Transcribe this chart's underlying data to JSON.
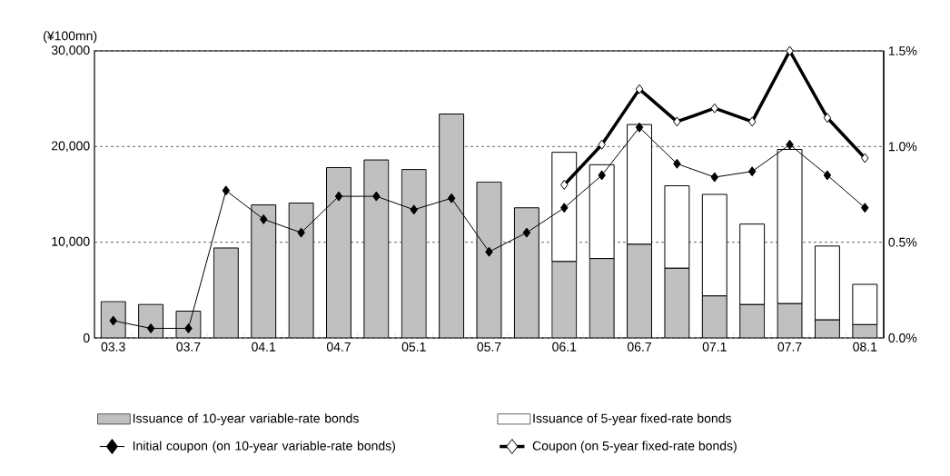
{
  "chart_data": {
    "type": "bar",
    "stacked": true,
    "ylabel": "(¥100mn)",
    "categories": [
      "03.3",
      null,
      "03.7",
      null,
      "04.1",
      null,
      "04.7",
      null,
      "05.1",
      null,
      "05.7",
      null,
      "06.1",
      null,
      "06.7",
      null,
      "07.1",
      null,
      "07.7",
      null,
      "08.1"
    ],
    "series": [
      {
        "name": "Issuance of 10-year variable-rate bonds",
        "color": "#c0c0c0",
        "values": [
          3800,
          3500,
          2800,
          9400,
          13900,
          14100,
          17800,
          18600,
          17600,
          23400,
          16300,
          13600,
          8000,
          8300,
          9800,
          7300,
          4400,
          3500,
          3600,
          1900,
          1400
        ]
      },
      {
        "name": "Issuance of 5-year fixed-rate bonds",
        "color": "#ffffff",
        "values": [
          null,
          null,
          null,
          null,
          null,
          null,
          null,
          null,
          null,
          null,
          null,
          null,
          11400,
          9800,
          12500,
          8600,
          10600,
          8400,
          16100,
          7700,
          4200
        ]
      },
      {
        "name": "Initial coupon (on 10-year variable-rate bonds)",
        "type": "line",
        "axis": "y2",
        "color": "#000000",
        "marker": "diamond",
        "values": [
          0.09,
          0.05,
          0.05,
          0.77,
          0.62,
          0.55,
          0.74,
          0.74,
          0.67,
          0.73,
          0.45,
          0.55,
          0.68,
          0.85,
          1.1,
          0.91,
          0.84,
          0.87,
          1.01,
          0.85,
          0.68
        ]
      },
      {
        "name": "Coupon (on 5-year fixed-rate bonds)",
        "type": "line",
        "axis": "y2",
        "color": "#000000",
        "marker": "diamond",
        "values": [
          null,
          null,
          null,
          null,
          null,
          null,
          null,
          null,
          null,
          null,
          null,
          null,
          0.8,
          1.01,
          1.3,
          1.13,
          1.2,
          1.13,
          1.5,
          1.15,
          0.94
        ]
      }
    ],
    "ylim": [
      0,
      30000
    ],
    "yticks": [
      0,
      {
        "value": 10000,
        "label": "10,000"
      },
      {
        "value": 20000,
        "label": "20,000"
      },
      {
        "value": 30000,
        "label": "30,000"
      }
    ],
    "y2lim": [
      0,
      1.5
    ],
    "y2ticks": [
      {
        "value": 0,
        "label": "0.0%"
      },
      {
        "value": 0.5,
        "label": "0.5%"
      },
      {
        "value": 1.0,
        "label": "1.0%"
      },
      {
        "value": 1.5,
        "label": "1.5%"
      }
    ],
    "grid": "y",
    "legend": "bottom"
  }
}
